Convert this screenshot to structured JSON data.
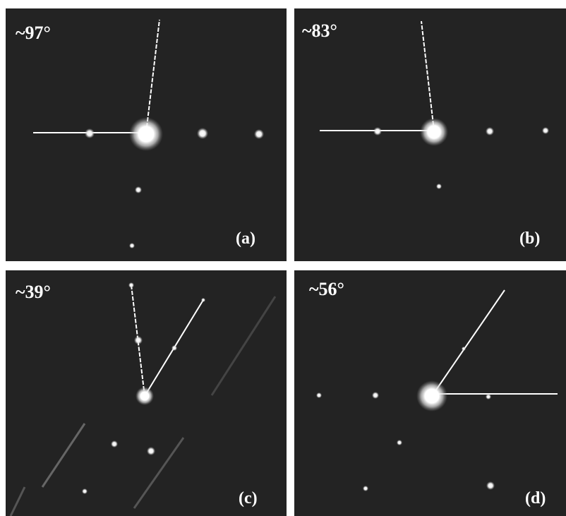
{
  "panels": [
    {
      "angle": "~97°",
      "label": "(a)"
    },
    {
      "angle": "~83°",
      "label": "(b)"
    },
    {
      "angle": "~39°",
      "label": "(c)"
    },
    {
      "angle": "~56°",
      "label": "(d)"
    }
  ]
}
